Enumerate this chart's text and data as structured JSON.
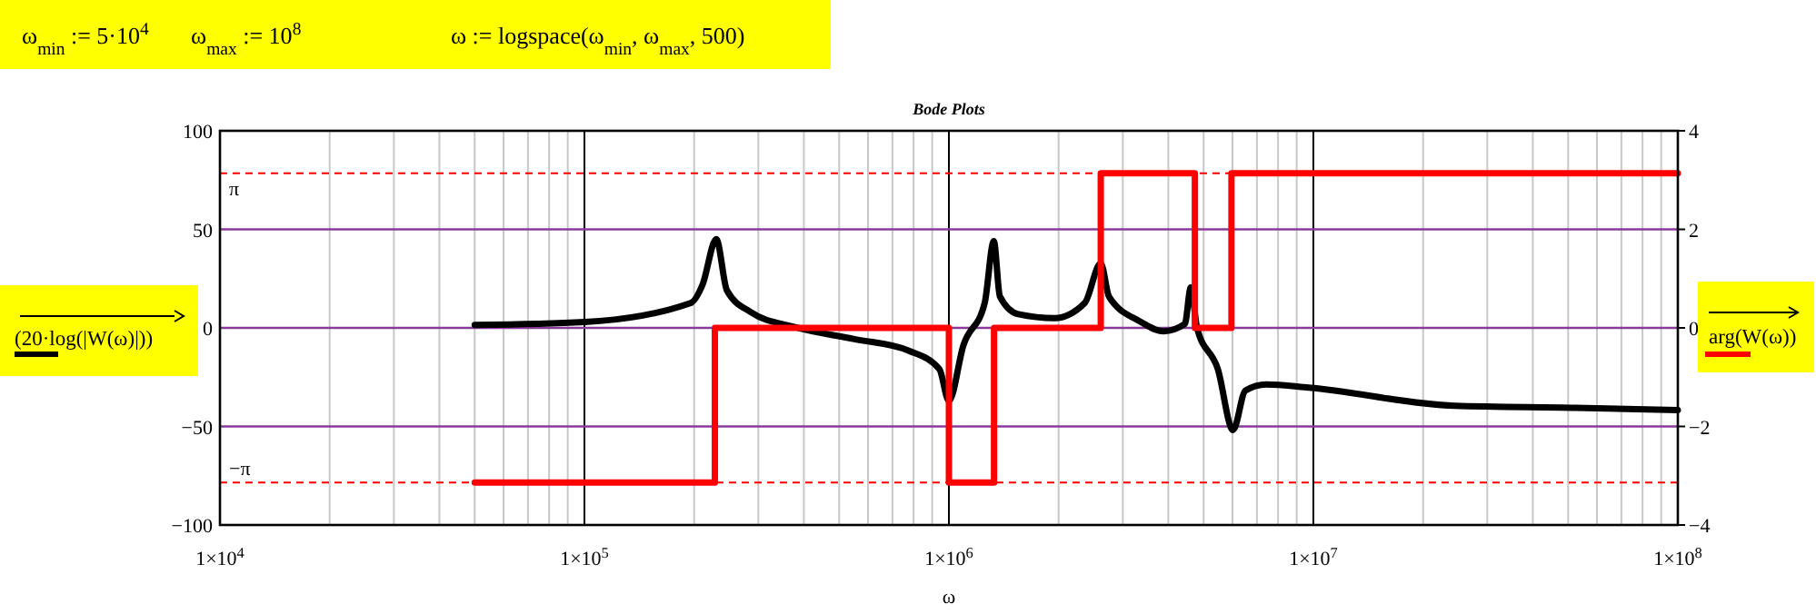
{
  "chart_data": {
    "type": "line",
    "title": "Bode Plots",
    "xlabel": "ω",
    "ylabel": "(20·log(|W(ω)|))",
    "y2label": "arg(W(ω))",
    "annotations": [
      "ω$_{min}$ := 5·10$^{4}$",
      "ω$_{max}$ := 10$^{8}$",
      "ω := logspace(ω$_{min}$, ω$_{max}$, 500)"
    ],
    "log": "x",
    "grid": true,
    "xlim": [
      10000,
      100000000
    ],
    "xticks": [
      {
        "value": 10000,
        "label": "1×10$^{4}$"
      },
      {
        "value": 100000,
        "label": "1×10$^{5}$"
      },
      {
        "value": 1000000,
        "label": "1×10$^{6}$"
      },
      {
        "value": 10000000,
        "label": "1×10$^{7}$"
      },
      {
        "value": 100000000,
        "label": "1×10$^{8}$"
      }
    ],
    "ylim": [
      -100,
      100
    ],
    "yticks": [
      {
        "value": -100,
        "label": "−100"
      },
      {
        "value": -50,
        "label": "−50"
      },
      0,
      50,
      100
    ],
    "y2lim": [
      -4,
      4
    ],
    "y2ticks": [
      {
        "value": -4,
        "label": "−4"
      },
      {
        "value": -2,
        "label": "−2"
      },
      0,
      2,
      4
    ],
    "ref_lines": [
      {
        "axis": "y2",
        "value": 3.14,
        "label": "π",
        "color": "#ff0000",
        "line_style": "dashed"
      },
      {
        "axis": "y2",
        "value": -3.14,
        "label": "−π",
        "color": "#ff0000",
        "line_style": "dashed"
      }
    ],
    "series": [
      {
        "type": "line",
        "color": "#000000",
        "x": [
          50000,
          100000,
          196000,
          211000,
          230000,
          246000,
          286000,
          376000,
          551000,
          777000,
          942000,
          1000000,
          1096000,
          1254000,
          1328000,
          1380000,
          1550000,
          1950000,
          2360000,
          2610000,
          2750000,
          3330000,
          3880000,
          4440000,
          4610000,
          4790000,
          5470000,
          6020000,
          6510000,
          7430000,
          9700000,
          24400000,
          52400000,
          100000000
        ],
        "values": [
          1.5,
          3,
          12.7,
          22,
          45,
          19,
          8,
          0.5,
          -5.7,
          -11.6,
          -21,
          -37,
          -8.8,
          12.7,
          44,
          16,
          7,
          5,
          12.7,
          32.7,
          15.8,
          3.5,
          -1.7,
          2,
          20.5,
          0.5,
          -21,
          -51.8,
          -31.8,
          -28.7,
          -30.3,
          -39.5,
          -40.5,
          -41.7
        ]
      },
      {
        "type": "step",
        "axis": "y2",
        "color": "#ff0000",
        "x": [
          50000,
          228000,
          1000000,
          1330000,
          2610000,
          4730000,
          5960000,
          100000000
        ],
        "values": [
          -3.14,
          0,
          -3.14,
          0,
          3.14,
          0,
          3.14,
          3.14
        ]
      }
    ]
  }
}
